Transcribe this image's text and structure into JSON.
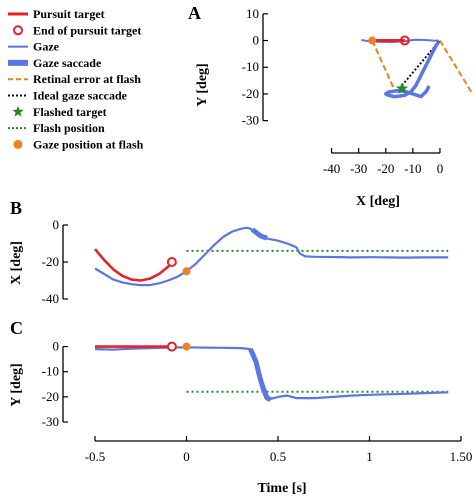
{
  "colors": {
    "pursuit": "#e8202a",
    "gaze": "#5b76e0",
    "retinal": "#f08020",
    "ideal": "#111111",
    "flashed": "#1f8a2a",
    "flash_pos": "#1f8a2a",
    "gaze_flash": "#f08020"
  },
  "legend": [
    {
      "key": "pursuit",
      "label": "Pursuit target",
      "icon": "red-line"
    },
    {
      "key": "end",
      "label": "End of pursuit target",
      "icon": "red-open-circle"
    },
    {
      "key": "gaze",
      "label": "Gaze",
      "icon": "blue-thin-line"
    },
    {
      "key": "saccade",
      "label": "Gaze saccade",
      "icon": "blue-thick-line"
    },
    {
      "key": "retinal",
      "label": "Retinal error at flash",
      "icon": "orange-dashed-line"
    },
    {
      "key": "ideal",
      "label": "Ideal gaze saccade",
      "icon": "black-dotted-line"
    },
    {
      "key": "flashed",
      "label": "Flashed target",
      "icon": "green-star"
    },
    {
      "key": "flashpos",
      "label": "Flash position",
      "icon": "green-dotted-line"
    },
    {
      "key": "gazeflash",
      "label": "Gaze position at flash",
      "icon": "orange-dot"
    }
  ],
  "panel_labels": {
    "A": "A",
    "B": "B",
    "C": "C"
  },
  "chart_data": [
    {
      "id": "A",
      "type": "line",
      "xlabel": "X [deg]",
      "ylabel": "Y [deg]",
      "xlim": [
        -45,
        5
      ],
      "ylim": [
        -35,
        12
      ],
      "xticks": [
        -40,
        -30,
        -20,
        -10,
        0
      ],
      "yticks": [
        10,
        0,
        -10,
        -20,
        -30
      ],
      "xtick_labels": [
        "-40",
        "-30",
        "-20",
        "-10",
        "0"
      ],
      "ytick_labels": [
        "10",
        "0",
        "-10",
        "-20",
        "-30"
      ],
      "pursuit": {
        "x": [
          -24,
          -13
        ],
        "y": [
          0,
          0
        ]
      },
      "end_pursuit": {
        "x": -13,
        "y": 0
      },
      "gaze": {
        "x": [
          -29,
          -26,
          -22,
          -18,
          -15,
          -13,
          -10,
          -8,
          -6,
          -4,
          -3,
          -2,
          -1,
          -0.5
        ],
        "y": [
          0.2,
          -0.3,
          -0.5,
          -0.6,
          -0.4,
          -0.3,
          0.2,
          0.3,
          0.2,
          0.1,
          0,
          -0.1,
          0,
          -0.2
        ]
      },
      "gaze_saccade": {
        "x": [
          -0.5,
          -1.5,
          -3,
          -5,
          -7,
          -9,
          -11,
          -13,
          -15,
          -17,
          -19,
          -20,
          -19,
          -16,
          -13,
          -10,
          -7,
          -5,
          -4
        ],
        "y": [
          -0.5,
          -2,
          -5,
          -9,
          -13,
          -17,
          -19.5,
          -20.5,
          -20.8,
          -21,
          -20.5,
          -20,
          -19.3,
          -18.8,
          -19,
          -20,
          -21,
          -19,
          -17
        ]
      },
      "retinal_error": {
        "segments": [
          {
            "x": [
              -25,
              -17
            ],
            "y": [
              0,
              -18
            ]
          },
          {
            "x": [
              0,
              12
            ],
            "y": [
              0,
              -20
            ]
          }
        ]
      },
      "ideal_saccade": {
        "x": [
          -15,
          0
        ],
        "y": [
          -18,
          0
        ]
      },
      "flashed_target": {
        "x": -14,
        "y": -18
      },
      "gaze_at_flash": {
        "x": -25,
        "y": 0
      }
    },
    {
      "id": "B",
      "type": "line",
      "xlabel": "",
      "ylabel": "X [deg]",
      "xlim": [
        -0.5,
        1.5
      ],
      "ylim": [
        -40,
        0
      ],
      "yticks": [
        0,
        -20,
        -40
      ],
      "ytick_labels": [
        "0",
        "-20",
        "-40"
      ],
      "pursuit": {
        "t": [
          -0.5,
          -0.45,
          -0.4,
          -0.35,
          -0.3,
          -0.25,
          -0.2,
          -0.15,
          -0.1,
          -0.08
        ],
        "v": [
          -13,
          -19,
          -24,
          -27.5,
          -29.5,
          -30,
          -29,
          -26.5,
          -22.5,
          -20
        ]
      },
      "end_pursuit": {
        "t": -0.08,
        "v": -20
      },
      "gaze": {
        "t": [
          -0.5,
          -0.45,
          -0.4,
          -0.35,
          -0.3,
          -0.25,
          -0.2,
          -0.15,
          -0.1,
          -0.05,
          0,
          0.05,
          0.1,
          0.15,
          0.2,
          0.25,
          0.3,
          0.33,
          0.35,
          0.37,
          0.4,
          0.45,
          0.5,
          0.55,
          0.6,
          0.62,
          0.65,
          0.7,
          0.8,
          0.9,
          1.0,
          1.1,
          1.2,
          1.3,
          1.43
        ],
        "v": [
          -23.5,
          -26.5,
          -29.5,
          -31,
          -32,
          -32.5,
          -32.5,
          -31.5,
          -30,
          -28,
          -25,
          -21,
          -16,
          -11,
          -6.5,
          -3.5,
          -2,
          -1.5,
          -2,
          -4,
          -6,
          -7.5,
          -8.5,
          -10,
          -12,
          -15.5,
          -17,
          -17.2,
          -17.3,
          -17.5,
          -17.4,
          -17.5,
          -17.6,
          -17.5,
          -17.5
        ]
      },
      "gaze_saccade": {
        "t": [
          0.36,
          0.38,
          0.4,
          0.42,
          0.44
        ],
        "v": [
          -2.5,
          -4,
          -5.5,
          -6.5,
          -7
        ]
      },
      "flash_position": {
        "t": [
          0,
          1.43
        ],
        "v": [
          -14,
          -14
        ]
      },
      "gaze_at_flash": {
        "t": 0,
        "v": -25
      }
    },
    {
      "id": "C",
      "type": "line",
      "xlabel": "Time [s]",
      "ylabel": "Y [deg]",
      "xlim": [
        -0.5,
        1.5
      ],
      "ylim": [
        -30,
        5
      ],
      "xticks": [
        -0.5,
        0,
        0.5,
        1,
        1.5
      ],
      "xtick_labels": [
        "-0.5",
        "0",
        "0.5",
        "1",
        "1.50"
      ],
      "yticks": [
        0,
        -10,
        -20,
        -30
      ],
      "ytick_labels": [
        "0",
        "-10",
        "-20",
        "-30"
      ],
      "pursuit": {
        "t": [
          -0.5,
          -0.08
        ],
        "v": [
          0,
          0
        ]
      },
      "end_pursuit": {
        "t": -0.08,
        "v": 0
      },
      "gaze": {
        "t": [
          -0.5,
          -0.4,
          -0.3,
          -0.2,
          -0.1,
          0,
          0.1,
          0.2,
          0.3,
          0.35,
          0.45,
          0.5,
          0.55,
          0.6,
          0.7,
          0.8,
          0.9,
          1.0,
          1.1,
          1.2,
          1.3,
          1.43
        ],
        "v": [
          -1,
          -1.2,
          -0.8,
          -0.6,
          -0.4,
          -0.3,
          -0.4,
          -0.5,
          -0.6,
          -1,
          -21,
          -20,
          -19.5,
          -20.5,
          -20.5,
          -20,
          -19.5,
          -19.2,
          -19,
          -18.8,
          -18.5,
          -18.2
        ]
      },
      "gaze_saccade": {
        "t": [
          0.35,
          0.38,
          0.4,
          0.42,
          0.44,
          0.46
        ],
        "v": [
          -1,
          -6,
          -12,
          -17,
          -20.5,
          -21
        ]
      },
      "flash_position": {
        "t": [
          0,
          1.43
        ],
        "v": [
          -18,
          -18
        ]
      },
      "gaze_at_flash": {
        "t": 0,
        "v": 0
      }
    }
  ]
}
